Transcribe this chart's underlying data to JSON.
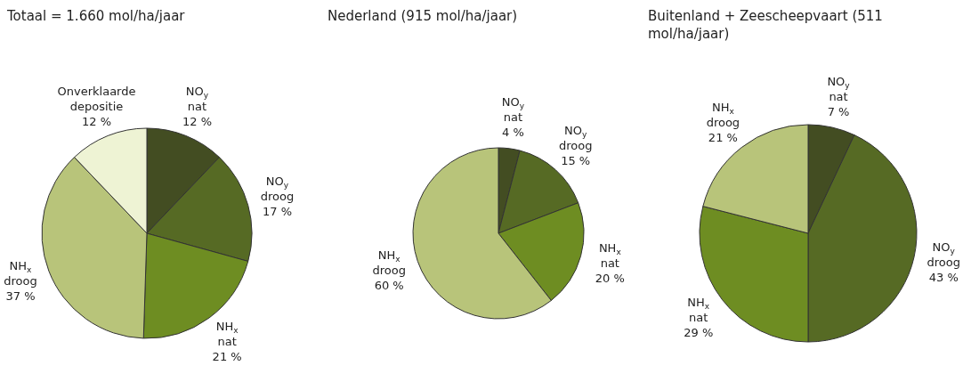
{
  "chart_data": [
    {
      "type": "pie",
      "title": "Totaal = 1.660 mol/ha/jaar",
      "categories": [
        "NO$_{y}$ nat",
        "NO$_{y}$ droog",
        "NH$_{x}$ nat",
        "NH$_{x}$ droog",
        "Onverklaarde depositie"
      ],
      "values": [
        12,
        17,
        21,
        37,
        12
      ],
      "colors": [
        "#434d22",
        "#566a24",
        "#6e8d22",
        "#b8c47a",
        "#eef3d4"
      ],
      "value_labels": [
        "12 %",
        "17 %",
        "21 %",
        "37 %",
        "12 %"
      ],
      "legend": false
    },
    {
      "type": "pie",
      "title": "Nederland (915 mol/ha/jaar)",
      "categories": [
        "NO$_{y}$ nat",
        "NO$_{y}$ droog",
        "NH$_{x}$ nat",
        "NH$_{x}$ droog"
      ],
      "values": [
        4,
        15,
        20,
        60
      ],
      "colors": [
        "#434d22",
        "#566a24",
        "#6e8d22",
        "#b8c47a"
      ],
      "value_labels": [
        "4 %",
        "15 %",
        "20 %",
        "60 %"
      ],
      "legend": false
    },
    {
      "type": "pie",
      "title": "Buitenland + Zeescheepvaart (511 mol/ha/jaar)",
      "categories": [
        "NO$_{y}$ nat",
        "NO$_{y}$ droog",
        "NH$_{x}$ nat",
        "NH$_{x}$ droog"
      ],
      "values": [
        7,
        43,
        29,
        21
      ],
      "colors": [
        "#434d22",
        "#566a24",
        "#6e8d22",
        "#b8c47a"
      ],
      "value_labels": [
        "7 %",
        "43 %",
        "29 %",
        "21 %"
      ],
      "legend": false
    }
  ]
}
